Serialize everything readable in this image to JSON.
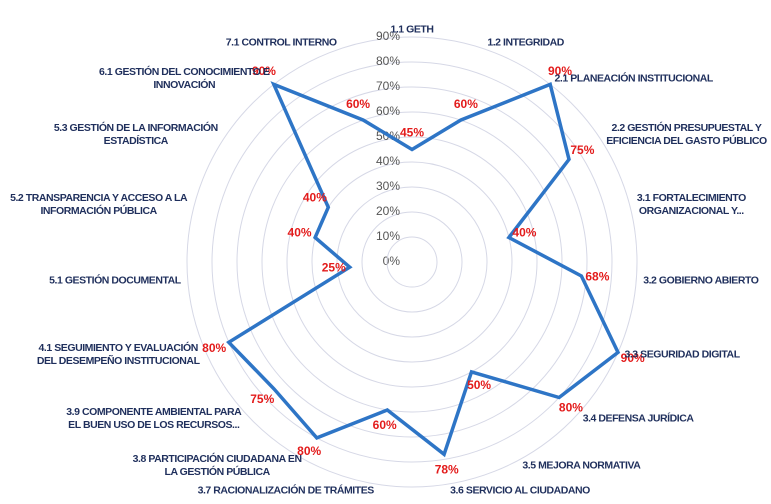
{
  "chart_data": {
    "type": "radar",
    "categories": [
      "1.1 GETH",
      "1.2 INTEGRIDAD",
      "2.1 PLANEACIÓN INSTITUCIONAL",
      "2.2 GESTIÓN PRESUPUESTAL Y\nEFICIENCIA DEL GASTO PÚBLICO",
      "3.1 FORTALECIMIENTO\nORGANIZACIONAL Y...",
      "3.2 GOBIERNO ABIERTO",
      "3.3 SEGURIDAD DIGITAL",
      "3.4 DEFENSA JURÍDICA",
      "3.5 MEJORA NORMATIVA",
      "3.6 SERVICIO AL CIUDADANO",
      "3.7 RACIONALIZACIÓN DE TRÁMITES",
      "3.8 PARTICIPACIÓN CIUDADANA EN\nLA GESTIÓN PÚBLICA",
      "3.9 COMPONENTE AMBIENTAL PARA\nEL BUEN USO DE LOS RECURSOS...",
      "4.1 SEGUIMIENTO Y EVALUACIÓN\nDEL DESEMPEÑO INSTITUCIONAL",
      "5.1 GESTIÓN DOCUMENTAL",
      "5.2 TRANSPARENCIA Y ACCESO A LA\nINFORMACIÓN PÚBLICA",
      "5.3 GESTIÓN DE LA INFORMACIÓN\nESTADÍSTICA",
      "6.1 GESTIÓN DEL CONOCIMIENTO E\nINNOVACIÓN",
      "7.1 CONTROL INTERNO"
    ],
    "values": [
      45,
      60,
      90,
      75,
      40,
      68,
      90,
      80,
      50,
      78,
      60,
      80,
      75,
      80,
      25,
      40,
      40,
      90,
      60
    ],
    "value_labels": [
      "45%",
      "60%",
      "90%",
      "75%",
      "40%",
      "68%",
      "90%",
      "80%",
      "50%",
      "78%",
      "60%",
      "80%",
      "75%",
      "80%",
      "25%",
      "40%",
      "40%",
      "90%",
      "60%"
    ],
    "color": "#2e75c6",
    "label_color": "#e31b1b",
    "rlim": [
      0,
      90
    ],
    "rticks": [
      {
        "value": 0,
        "label": "0%"
      },
      {
        "value": 10,
        "label": "10%"
      },
      {
        "value": 20,
        "label": "20%"
      },
      {
        "value": 30,
        "label": "30%"
      },
      {
        "value": 40,
        "label": "40%"
      },
      {
        "value": 50,
        "label": "50%"
      },
      {
        "value": 60,
        "label": "60%"
      },
      {
        "value": 70,
        "label": "70%"
      },
      {
        "value": 80,
        "label": "80%"
      },
      {
        "value": 90,
        "label": "90%"
      }
    ],
    "grid": true
  }
}
